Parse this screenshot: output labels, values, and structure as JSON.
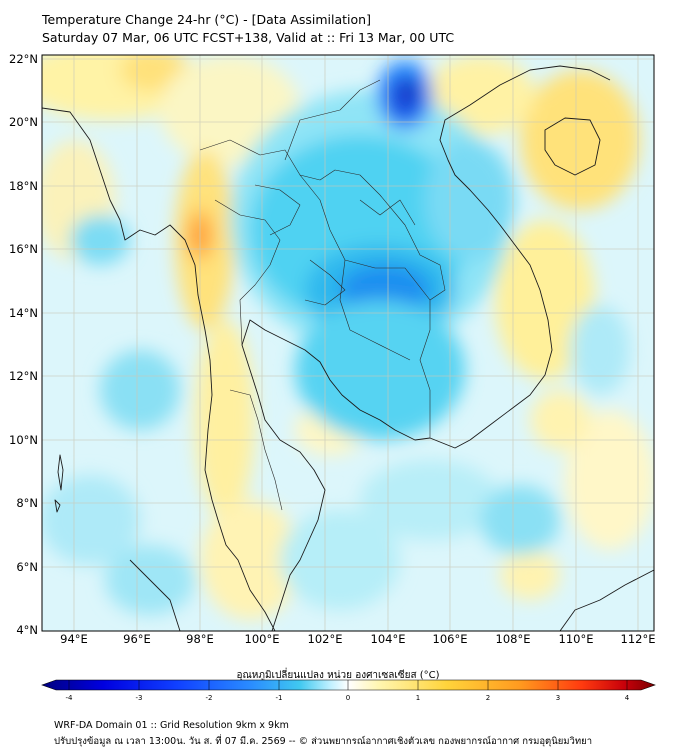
{
  "header": {
    "title": "Temperature Change 24-hr (°C) - [Data Assimilation]",
    "subtitle": "Saturday 07 Mar, 06 UTC FCST+138, Valid at :: Fri 13 Mar, 00 UTC"
  },
  "map": {
    "lat_labels": [
      "22°N",
      "20°N",
      "18°N",
      "16°N",
      "14°N",
      "12°N",
      "10°N",
      "8°N",
      "6°N",
      "4°N"
    ],
    "lon_labels": [
      "94°E",
      "96°E",
      "98°E",
      "100°E",
      "102°E",
      "104°E",
      "106°E",
      "108°E",
      "110°E",
      "112°E"
    ],
    "extent": {
      "lat_min": 4,
      "lat_max": 22.2,
      "lon_min": 93,
      "lon_max": 112.5
    }
  },
  "colorbar": {
    "title": "อุณหภูมิเปลี่ยนแปลง หน่วย องศาเซลเซียส (°C)",
    "ticks": [
      "-4",
      "-3",
      "-2",
      "-1",
      "0",
      "1",
      "2",
      "3",
      "4"
    ],
    "colors": [
      "#00007f",
      "#0000e0",
      "#1040ff",
      "#2a8cff",
      "#40c8f0",
      "#bff0ff",
      "#ffffff",
      "#fff6b0",
      "#ffd43b",
      "#ff9a1f",
      "#ff3b0f",
      "#c8000a",
      "#7a0000"
    ]
  },
  "footer": {
    "line1": "WRF-DA Domain 01 :: Grid Resolution 9km x 9km",
    "line2": "ปรับปรุงข้อมูล ณ เวลา 13:00น. วัน ส. ที่ 07 มี.ค. 2569 -- © ส่วนพยากรณ์อากาศเชิงตัวเลข กองพยากรณ์อากาศ กรมอุตุนิยมวิทยา"
  }
}
